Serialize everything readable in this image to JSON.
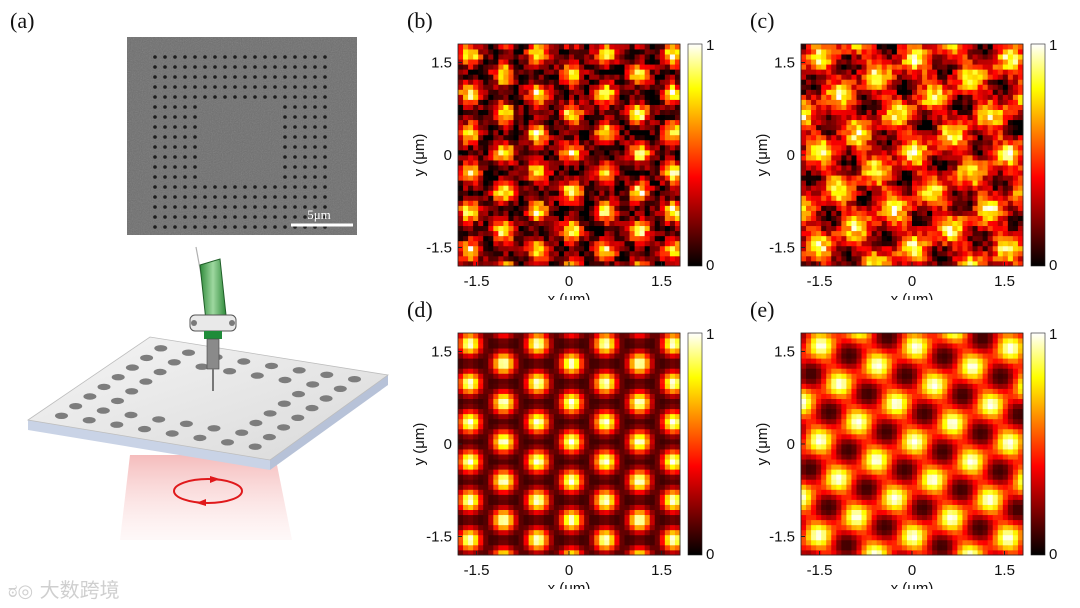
{
  "figure": {
    "panel_a_label": "(a)",
    "sem_scale_bar": "5μm",
    "illustration": "fiber probe scanning a holey metal film illuminated by circularly polarized light"
  },
  "panels": [
    {
      "id": "b",
      "label": "(b)",
      "xlabel": "x (μm)",
      "ylabel": "y (μm)",
      "xticks": [
        "-1.5",
        "0",
        "1.5"
      ],
      "yticks": [
        "1.5",
        "0",
        "-1.5"
      ],
      "colorbar": {
        "max_label": "1",
        "min_label": "0"
      }
    },
    {
      "id": "c",
      "label": "(c)",
      "xlabel": "x (μm)",
      "ylabel": "y (μm)",
      "xticks": [
        "-1.5",
        "0",
        "1.5"
      ],
      "yticks": [
        "1.5",
        "0",
        "-1.5"
      ],
      "colorbar": {
        "max_label": "1",
        "min_label": "0"
      }
    },
    {
      "id": "d",
      "label": "(d)",
      "xlabel": "x (μm)",
      "ylabel": "y (μm)",
      "xticks": [
        "-1.5",
        "0",
        "1.5"
      ],
      "yticks": [
        "1.5",
        "0",
        "-1.5"
      ],
      "colorbar": {
        "max_label": "1",
        "min_label": "0"
      }
    },
    {
      "id": "e",
      "label": "(e)",
      "xlabel": "x (μm)",
      "ylabel": "y (μm)",
      "xticks": [
        "-1.5",
        "0",
        "1.5"
      ],
      "yticks": [
        "1.5",
        "0",
        "-1.5"
      ],
      "colorbar": {
        "max_label": "1",
        "min_label": "0"
      }
    }
  ],
  "chart_data": [
    {
      "type": "heatmap",
      "panel": "b",
      "title": "",
      "xlabel": "x (μm)",
      "ylabel": "y (μm)",
      "xlim": [
        -1.8,
        1.8
      ],
      "ylim": [
        -1.8,
        1.8
      ],
      "clim": [
        0,
        1
      ],
      "colormap": "hot",
      "pattern": "experimental, noisy hexagonal spot lattice"
    },
    {
      "type": "heatmap",
      "panel": "c",
      "title": "",
      "xlabel": "x (μm)",
      "ylabel": "y (μm)",
      "xlim": [
        -1.8,
        1.8
      ],
      "ylim": [
        -1.8,
        1.8
      ],
      "clim": [
        0,
        1
      ],
      "colormap": "hot",
      "pattern": "experimental, tilted elongated spot lattice"
    },
    {
      "type": "heatmap",
      "panel": "d",
      "title": "",
      "xlabel": "x (μm)",
      "ylabel": "y (μm)",
      "xlim": [
        -1.8,
        1.8
      ],
      "ylim": [
        -1.8,
        1.8
      ],
      "clim": [
        0,
        1
      ],
      "colormap": "hot",
      "pattern": "simulated hexagonal spot lattice"
    },
    {
      "type": "heatmap",
      "panel": "e",
      "title": "",
      "xlabel": "x (μm)",
      "ylabel": "y (μm)",
      "xlim": [
        -1.8,
        1.8
      ],
      "ylim": [
        -1.8,
        1.8
      ],
      "clim": [
        0,
        1
      ],
      "colormap": "hot",
      "pattern": "simulated tilted square spot lattice"
    }
  ],
  "watermark": "大数跨境"
}
